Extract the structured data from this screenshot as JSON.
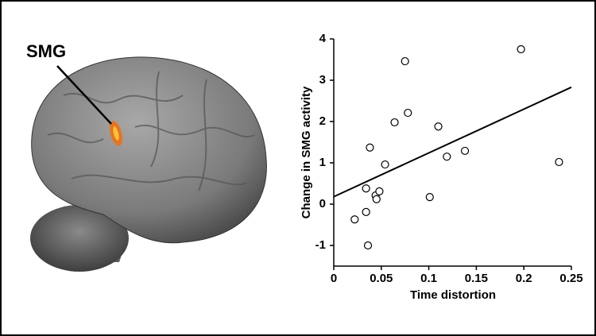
{
  "label": "SMG",
  "chart_data": {
    "type": "scatter",
    "xlabel": "Time distortion",
    "ylabel": "Change in SMG activity",
    "x": [
      0.022,
      0.034,
      0.036,
      0.034,
      0.038,
      0.044,
      0.045,
      0.048,
      0.054,
      0.064,
      0.075,
      0.078,
      0.101,
      0.11,
      0.119,
      0.138,
      0.197,
      0.237
    ],
    "y": [
      -0.37,
      -0.19,
      -1.0,
      0.38,
      1.37,
      0.21,
      0.12,
      0.31,
      0.96,
      1.98,
      3.46,
      2.21,
      0.17,
      1.88,
      1.15,
      1.29,
      3.75,
      1.02
    ],
    "fit_line": {
      "x": [
        0,
        0.25
      ],
      "y": [
        0.18,
        2.83
      ]
    },
    "xlim": [
      0,
      0.25
    ],
    "ylim": [
      -1.5,
      4
    ],
    "xticks": [
      0,
      0.05,
      0.1,
      0.15,
      0.2,
      0.25
    ],
    "yticks": [
      -1,
      0,
      1,
      2,
      3,
      4
    ],
    "color": "#000000"
  }
}
